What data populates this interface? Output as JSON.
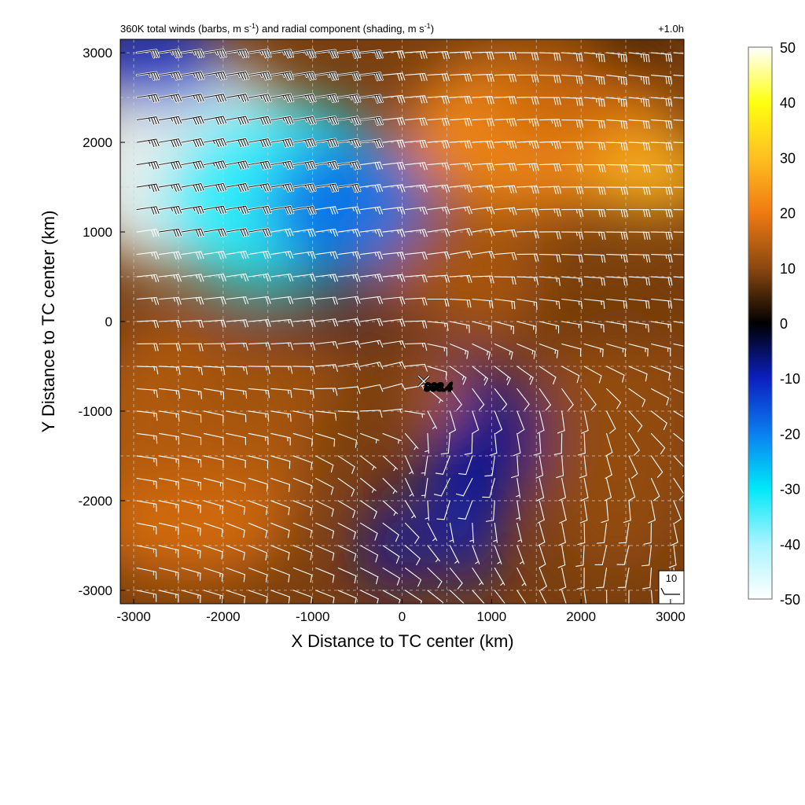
{
  "title": {
    "main": "360K total winds (barbs, m s",
    "sup1": "-1",
    "mid": ") and radial component (shading, m s",
    "sup2": "-1",
    "end": ")"
  },
  "valid_time": "+1.0h",
  "center_label": "998.4",
  "reference_barb": {
    "label": "10",
    "speed": 10
  },
  "chart_data": {
    "type": "heatmap",
    "title": "360K total winds (barbs, m s-1) and radial component (shading, m s-1)",
    "xlabel": "X Distance to TC center (km)",
    "ylabel": "Y Distance to TC center (km)",
    "xlim": [
      -3150,
      3150
    ],
    "ylim": [
      -3150,
      3150
    ],
    "xticks": [
      -3000,
      -2000,
      -1000,
      0,
      1000,
      2000,
      3000
    ],
    "yticks": [
      -3000,
      -2000,
      -1000,
      0,
      1000,
      2000,
      3000
    ],
    "grid": true,
    "center": {
      "x": 250,
      "y": -680,
      "label": "998.4"
    },
    "colorbar": {
      "min": -50,
      "max": 50,
      "ticks": [
        50,
        40,
        30,
        20,
        10,
        0,
        -10,
        -20,
        -30,
        -40,
        -50
      ],
      "stops": [
        {
          "value": -50,
          "color": "#ffffff"
        },
        {
          "value": -40,
          "color": "#a8f4ff"
        },
        {
          "value": -30,
          "color": "#00e8f8"
        },
        {
          "value": -20,
          "color": "#0a7ff0"
        },
        {
          "value": -10,
          "color": "#0b1fbf"
        },
        {
          "value": 0,
          "color": "#000000"
        },
        {
          "value": 10,
          "color": "#8b4810"
        },
        {
          "value": 20,
          "color": "#f07a12"
        },
        {
          "value": 30,
          "color": "#ffc020"
        },
        {
          "value": 40,
          "color": "#ffff10"
        },
        {
          "value": 50,
          "color": "#ffffff"
        }
      ]
    },
    "shading_features": [
      {
        "x": -2400,
        "y": 1750,
        "rx": 1300,
        "ry": 1150,
        "value": -48,
        "rot": -18
      },
      {
        "x": -1400,
        "y": 1400,
        "rx": 1300,
        "ry": 1050,
        "value": -32,
        "rot": -15
      },
      {
        "x": -600,
        "y": 1250,
        "rx": 900,
        "ry": 800,
        "value": -18
      },
      {
        "x": -2800,
        "y": 2900,
        "rx": 900,
        "ry": 500,
        "value": -12
      },
      {
        "x": 1500,
        "y": 2100,
        "rx": 1500,
        "ry": 900,
        "value": 22
      },
      {
        "x": 2800,
        "y": 1650,
        "rx": 700,
        "ry": 450,
        "value": 28
      },
      {
        "x": 1900,
        "y": 2500,
        "rx": 900,
        "ry": 500,
        "value": 16
      },
      {
        "x": 700,
        "y": 500,
        "rx": 900,
        "ry": 700,
        "value": 13
      },
      {
        "x": -2300,
        "y": -1400,
        "rx": 1300,
        "ry": 1500,
        "value": 14
      },
      {
        "x": -2400,
        "y": -2300,
        "rx": 1100,
        "ry": 600,
        "value": 17
      },
      {
        "x": -1500,
        "y": -700,
        "rx": 900,
        "ry": 500,
        "value": 12
      },
      {
        "x": 2400,
        "y": -1200,
        "rx": 900,
        "ry": 1600,
        "value": 11
      },
      {
        "x": 700,
        "y": -1700,
        "rx": 450,
        "ry": 1300,
        "value": -9
      },
      {
        "x": 1100,
        "y": -1300,
        "rx": 500,
        "ry": 700,
        "value": -7
      },
      {
        "x": -100,
        "y": -2500,
        "rx": 350,
        "ry": 550,
        "value": -8
      },
      {
        "x": 400,
        "y": -840,
        "rx": 260,
        "ry": 240,
        "value": 18
      },
      {
        "x": -900,
        "y": 0,
        "rx": 1500,
        "ry": 130,
        "value": -3
      },
      {
        "x": 2300,
        "y": 0,
        "rx": 900,
        "ry": 120,
        "value": 2
      },
      {
        "x": 2550,
        "y": 3000,
        "rx": 550,
        "ry": 260,
        "value": 0
      }
    ],
    "wind_barbs": {
      "spacing_km": 250,
      "regimes": [
        {
          "x": -2200,
          "y": 1800,
          "u": -48,
          "v": -10
        },
        {
          "x": -1200,
          "y": 1900,
          "u": -42,
          "v": -8
        },
        {
          "x": -1800,
          "y": 900,
          "u": -32,
          "v": -6
        },
        {
          "x": -800,
          "y": 900,
          "u": -26,
          "v": -4
        },
        {
          "x": 1200,
          "y": 2000,
          "u": -38,
          "v": -3
        },
        {
          "x": 2500,
          "y": 1300,
          "u": -34,
          "v": 0
        },
        {
          "x": 2200,
          "y": 2700,
          "u": -35,
          "v": 5
        },
        {
          "x": 600,
          "y": 900,
          "u": -22,
          "v": -6
        },
        {
          "x": -1500,
          "y": 200,
          "u": -14,
          "v": -2
        },
        {
          "x": 1500,
          "y": 300,
          "u": -13,
          "v": 2
        },
        {
          "x": -2300,
          "y": -1000,
          "u": -10,
          "v": 3
        },
        {
          "x": -1800,
          "y": -2300,
          "u": -11,
          "v": 5
        },
        {
          "x": -600,
          "y": -1500,
          "u": -6,
          "v": 7
        },
        {
          "x": 700,
          "y": -1800,
          "u": 6,
          "v": 9
        },
        {
          "x": 1800,
          "y": -1200,
          "u": 3,
          "v": 11
        },
        {
          "x": 2400,
          "y": -2500,
          "u": 4,
          "v": 10
        },
        {
          "x": 300,
          "y": -400,
          "u": -4,
          "v": 4
        }
      ],
      "vortex": {
        "x": 250,
        "y": -680,
        "strength": 9,
        "radius": 900
      }
    }
  }
}
